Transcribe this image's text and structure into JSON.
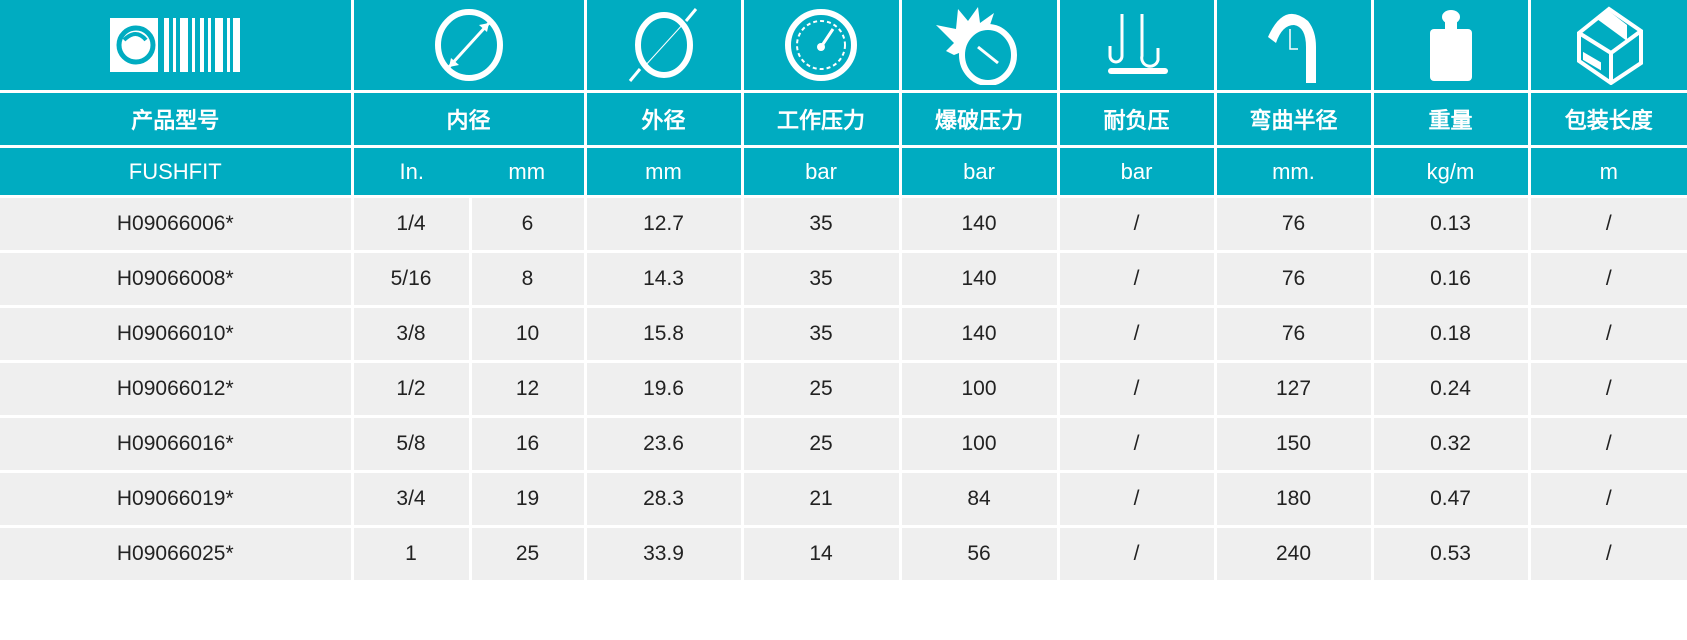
{
  "colors": {
    "header": "#00acc1",
    "row": "#efefef"
  },
  "icons": [
    "brand-logo",
    "inner-diameter-icon",
    "outer-diameter-icon",
    "working-pressure-gauge-icon",
    "burst-pressure-icon",
    "vacuum-icon",
    "bend-radius-icon",
    "weight-icon",
    "package-box-icon"
  ],
  "headers": [
    "产品型号",
    "内径",
    "外径",
    "工作压力",
    "爆破压力",
    "耐负压",
    "弯曲半径",
    "重量",
    "包装长度"
  ],
  "units": [
    "FUSHFIT",
    "In.",
    "mm",
    "mm",
    "bar",
    "bar",
    "bar",
    "mm.",
    "kg/m",
    "m"
  ],
  "rows": [
    [
      "H09066006*",
      "1/4",
      "6",
      "12.7",
      "35",
      "140",
      "/",
      "76",
      "0.13",
      "/"
    ],
    [
      "H09066008*",
      "5/16",
      "8",
      "14.3",
      "35",
      "140",
      "/",
      "76",
      "0.16",
      "/"
    ],
    [
      "H09066010*",
      "3/8",
      "10",
      "15.8",
      "35",
      "140",
      "/",
      "76",
      "0.18",
      "/"
    ],
    [
      "H09066012*",
      "1/2",
      "12",
      "19.6",
      "25",
      "100",
      "/",
      "127",
      "0.24",
      "/"
    ],
    [
      "H09066016*",
      "5/8",
      "16",
      "23.6",
      "25",
      "100",
      "/",
      "150",
      "0.32",
      "/"
    ],
    [
      "H09066019*",
      "3/4",
      "19",
      "28.3",
      "21",
      "84",
      "/",
      "180",
      "0.47",
      "/"
    ],
    [
      "H09066025*",
      "1",
      "25",
      "33.9",
      "14",
      "56",
      "/",
      "240",
      "0.53",
      "/"
    ]
  ]
}
